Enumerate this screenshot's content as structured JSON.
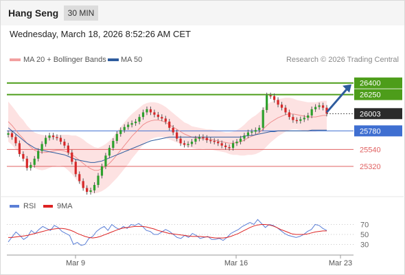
{
  "header": {
    "title": "Hang Seng",
    "timeframe": "30 MIN"
  },
  "datetime": "Wednesday, March 18, 2026 8:52:26 AM CET",
  "legend": [
    {
      "label": "MA 20 + Bollinger Bands",
      "color": "#f08a8a"
    },
    {
      "label": "MA 50",
      "color": "#2e5c9e"
    }
  ],
  "credit": "Research © 2026 Trading Central",
  "rsi_legend": [
    {
      "label": "RSI",
      "color": "#5b7fd6"
    },
    {
      "label": "9MA",
      "color": "#dd2222"
    }
  ],
  "chart_data": {
    "type": "candlestick",
    "y_range": [
      25000,
      26620
    ],
    "x_tick_labels": [
      "Mar 9",
      "Mar 16",
      "Mar 23"
    ],
    "last_price": 26003,
    "levels": [
      {
        "value": 26400,
        "label": "26400",
        "kind": "resistance",
        "color": "#4d9d1a"
      },
      {
        "value": 26250,
        "label": "26250",
        "kind": "resistance",
        "color": "#4d9d1a"
      },
      {
        "value": 25780,
        "label": "25780",
        "kind": "pivot",
        "color": "#3f6fd1"
      },
      {
        "value": 25540,
        "label": "25540",
        "kind": "support",
        "color": "#e06060"
      },
      {
        "value": 25320,
        "label": "25320",
        "kind": "support",
        "color": "#e06060"
      }
    ],
    "last_price_label": "26003",
    "price_series": [
      25750,
      25700,
      25620,
      25480,
      25420,
      25300,
      25340,
      25420,
      25520,
      25610,
      25690,
      25720,
      25700,
      25690,
      25640,
      25590,
      25500,
      25380,
      25220,
      25130,
      25040,
      24990,
      25010,
      25080,
      25200,
      25320,
      25460,
      25560,
      25650,
      25740,
      25790,
      25830,
      25860,
      25880,
      25900,
      25960,
      26020,
      26060,
      26020,
      25990,
      25960,
      25940,
      25900,
      25820,
      25760,
      25680,
      25620,
      25600,
      25610,
      25640,
      25680,
      25700,
      25690,
      25660,
      25650,
      25640,
      25620,
      25590,
      25570,
      25560,
      25620,
      25640,
      25680,
      25720,
      25760,
      25770,
      25790,
      25820,
      26050,
      26240,
      26230,
      26180,
      26120,
      26080,
      26020,
      25960,
      25920,
      25910,
      25930,
      25950,
      25980,
      26060,
      26090,
      26110,
      26080,
      26003
    ],
    "ma20": [
      25900,
      25850,
      25790,
      25730,
      25680,
      25620,
      25570,
      25530,
      25510,
      25500,
      25500,
      25510,
      25520,
      25530,
      25530,
      25520,
      25500,
      25470,
      25440,
      25400,
      25360,
      25320,
      25290,
      25270,
      25270,
      25290,
      25320,
      25360,
      25410,
      25470,
      25530,
      25590,
      25650,
      25710,
      25760,
      25810,
      25860,
      25890,
      25910,
      25920,
      25920,
      25910,
      25890,
      25860,
      25830,
      25800,
      25770,
      25740,
      25720,
      25700,
      25690,
      25680,
      25680,
      25670,
      25670,
      25660,
      25650,
      25640,
      25630,
      25620,
      25620,
      25630,
      25640,
      25660,
      25690,
      25710,
      25730,
      25760,
      25800,
      25850,
      25890,
      25920,
      25950,
      25970,
      25990,
      26000,
      26000,
      25990,
      25980,
      25970,
      25960,
      25960,
      25960,
      25970,
      25980,
      25980
    ],
    "ma50": [
      25820,
      25780,
      25740,
      25700,
      25660,
      25620,
      25590,
      25560,
      25540,
      25530,
      25520,
      25510,
      25500,
      25490,
      25480,
      25470,
      25450,
      25430,
      25410,
      25400,
      25390,
      25380,
      25370,
      25370,
      25380,
      25390,
      25410,
      25430,
      25450,
      25470,
      25490,
      25510,
      25530,
      25550,
      25570,
      25590,
      25610,
      25630,
      25650,
      25660,
      25670,
      25680,
      25690,
      25700,
      25700,
      25700,
      25700,
      25700,
      25700,
      25700,
      25700,
      25700,
      25700,
      25700,
      25700,
      25700,
      25700,
      25700,
      25700,
      25700,
      25700,
      25700,
      25700,
      25710,
      25720,
      25720,
      25730,
      25740,
      25750,
      25760,
      25770,
      25770,
      25780,
      25780,
      25780,
      25780,
      25780,
      25780,
      25780,
      25780,
      25780,
      25790,
      25790,
      25790,
      25790,
      25790
    ],
    "bb_width": [
      260,
      250,
      250,
      240,
      240,
      230,
      230,
      230,
      230,
      230,
      220,
      210,
      200,
      200,
      200,
      210,
      230,
      250,
      280,
      300,
      310,
      310,
      310,
      300,
      290,
      290,
      290,
      290,
      290,
      300,
      300,
      300,
      300,
      290,
      280,
      270,
      260,
      250,
      240,
      230,
      220,
      210,
      200,
      190,
      180,
      170,
      160,
      150,
      150,
      140,
      140,
      140,
      130,
      130,
      130,
      130,
      130,
      130,
      130,
      140,
      150,
      160,
      180,
      200,
      220,
      240,
      250,
      260,
      270,
      270,
      260,
      250,
      240,
      230,
      220,
      210,
      200,
      190,
      190,
      190,
      190,
      190,
      190,
      190,
      190,
      190
    ],
    "rsi": {
      "y_range": [
        10,
        90
      ],
      "tick_labels": [
        "70",
        "50",
        "30"
      ],
      "tick_values": [
        70,
        50,
        30
      ],
      "rsi_values": [
        35,
        45,
        55,
        48,
        40,
        45,
        58,
        52,
        60,
        66,
        62,
        58,
        68,
        64,
        56,
        52,
        48,
        30,
        34,
        28,
        30,
        42,
        46,
        56,
        62,
        66,
        58,
        70,
        64,
        60,
        66,
        62,
        70,
        68,
        72,
        66,
        58,
        56,
        50,
        50,
        55,
        60,
        56,
        50,
        44,
        42,
        48,
        44,
        52,
        48,
        42,
        44,
        46,
        40,
        40,
        42,
        38,
        44,
        52,
        56,
        60,
        66,
        70,
        74,
        70,
        80,
        72,
        64,
        70,
        68,
        64,
        58,
        52,
        48,
        46,
        44,
        46,
        50,
        56,
        60,
        70,
        68,
        62,
        58
      ],
      "ma_values": [
        44,
        44,
        45,
        46,
        47,
        48,
        50,
        52,
        54,
        56,
        58,
        60,
        61,
        62,
        62,
        61,
        59,
        56,
        52,
        49,
        46,
        44,
        43,
        44,
        46,
        49,
        52,
        55,
        58,
        61,
        63,
        64,
        65,
        66,
        66,
        66,
        65,
        63,
        61,
        58,
        56,
        54,
        52,
        51,
        50,
        49,
        48,
        47,
        46,
        46,
        46,
        45,
        45,
        44,
        43,
        43,
        43,
        44,
        46,
        49,
        52,
        56,
        60,
        64,
        67,
        69,
        70,
        70,
        69,
        67,
        64,
        60,
        57,
        54,
        51,
        50,
        50,
        50,
        51,
        53,
        55,
        56,
        57,
        57
      ]
    }
  }
}
